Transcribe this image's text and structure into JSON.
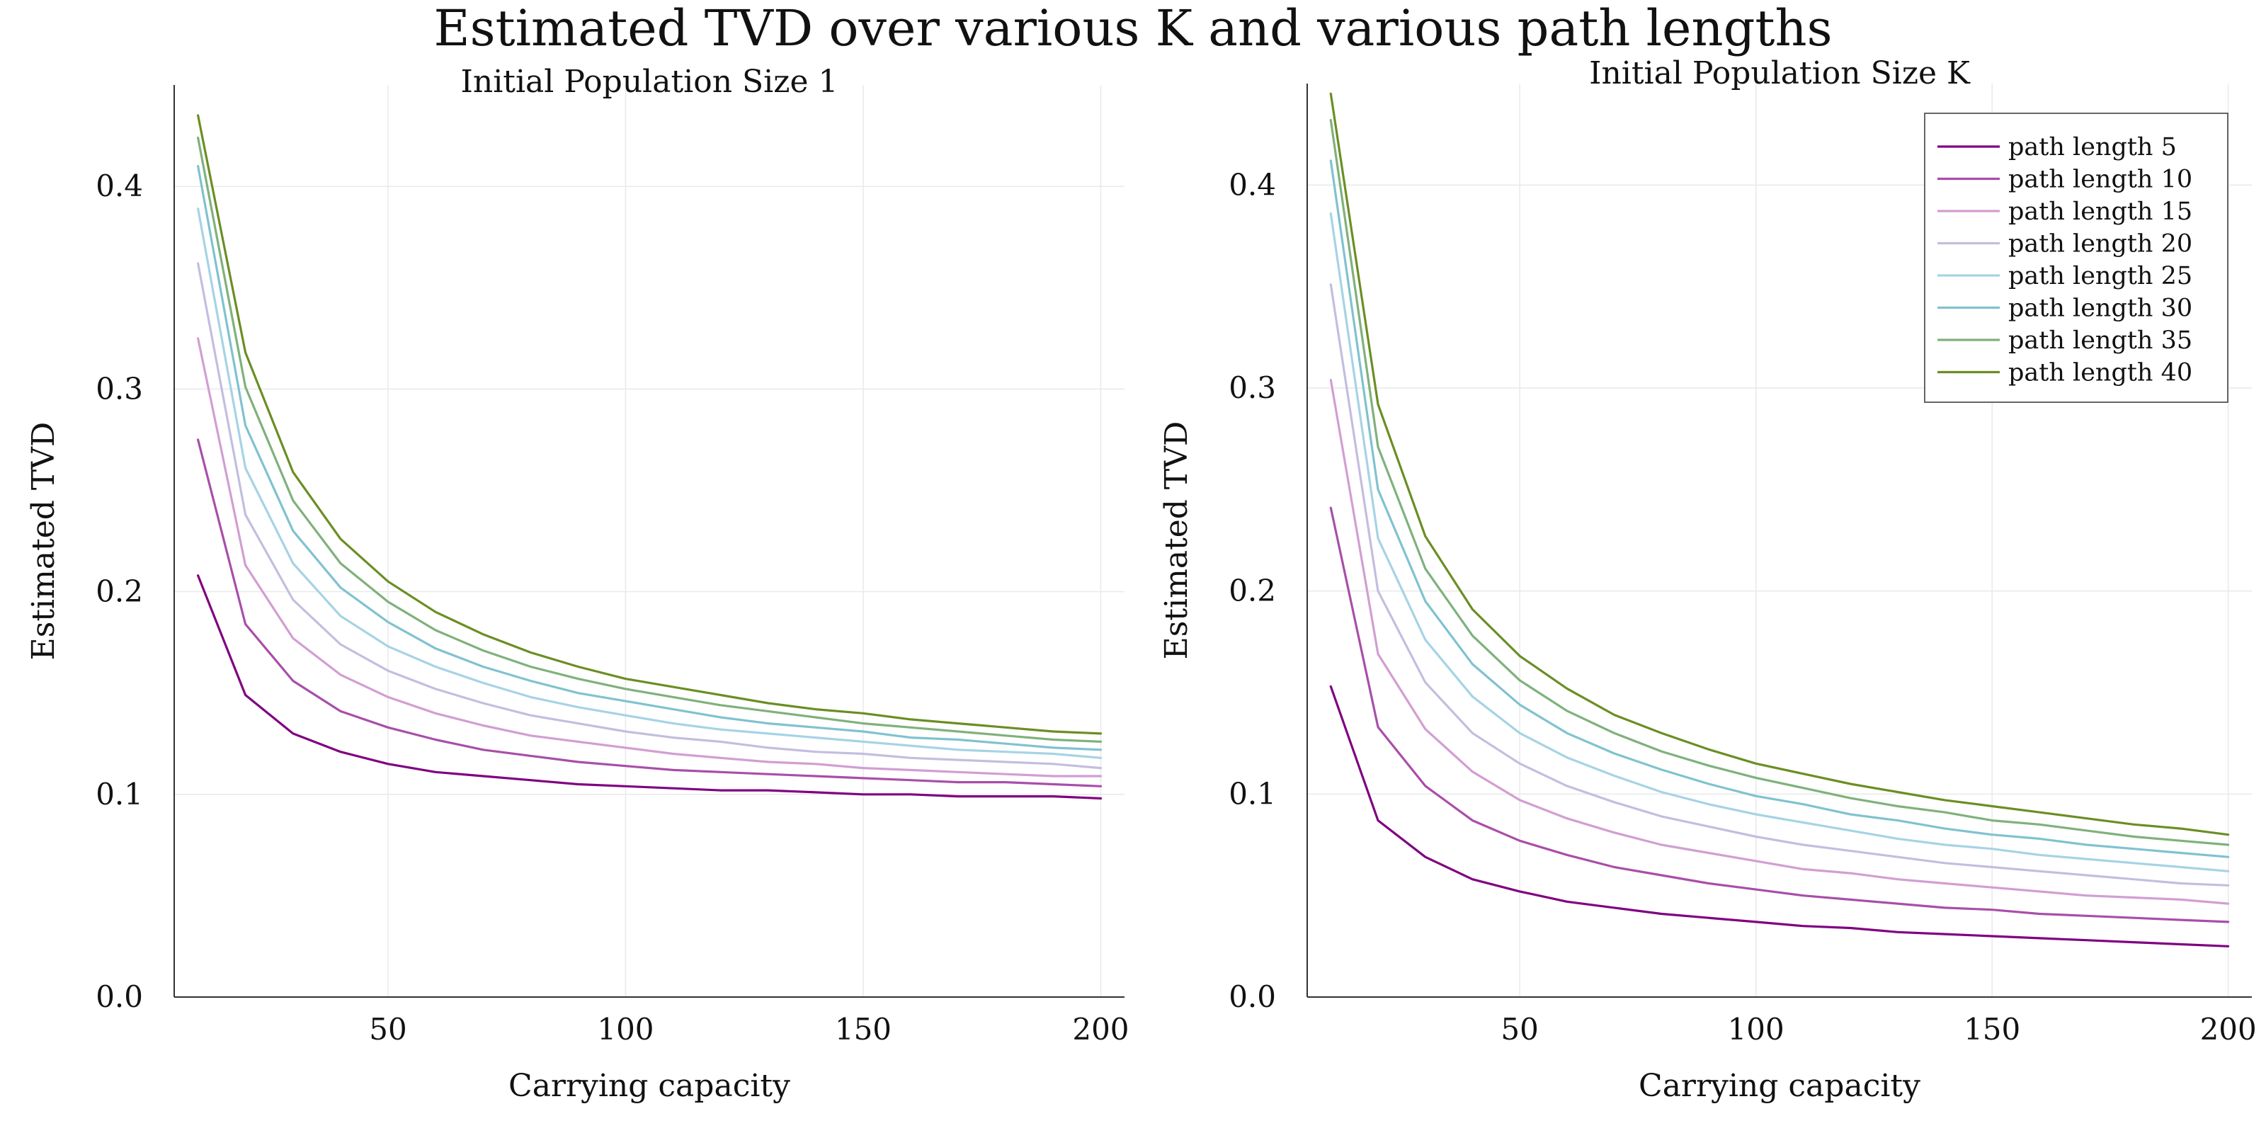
{
  "title": "Estimated TVD over various K and various path lengths",
  "chart_data": [
    {
      "type": "line",
      "title": "Initial Population Size 1",
      "xlabel": "Carrying capacity",
      "ylabel": "Estimated TVD",
      "x": [
        10,
        20,
        30,
        40,
        50,
        60,
        70,
        80,
        90,
        100,
        110,
        120,
        130,
        140,
        150,
        160,
        170,
        180,
        190,
        200
      ],
      "xlim": [
        5,
        205
      ],
      "ylim": [
        0.0,
        0.45
      ],
      "xticks": [
        "50",
        "100",
        "150",
        "200"
      ],
      "yticks": [
        "0.0",
        "0.1",
        "0.2",
        "0.3",
        "0.4"
      ],
      "grid": true,
      "series": [
        {
          "name": "path length 5",
          "color": "#800080",
          "values": [
            0.208,
            0.149,
            0.13,
            0.121,
            0.115,
            0.111,
            0.109,
            0.107,
            0.105,
            0.104,
            0.103,
            0.102,
            0.102,
            0.101,
            0.1,
            0.1,
            0.099,
            0.099,
            0.099,
            0.098
          ]
        },
        {
          "name": "path length 10",
          "color": "#a94ea9",
          "values": [
            0.275,
            0.184,
            0.156,
            0.141,
            0.133,
            0.127,
            0.122,
            0.119,
            0.116,
            0.114,
            0.112,
            0.111,
            0.11,
            0.109,
            0.108,
            0.107,
            0.106,
            0.106,
            0.105,
            0.104
          ]
        },
        {
          "name": "path length 15",
          "color": "#d29ed2",
          "values": [
            0.325,
            0.213,
            0.177,
            0.159,
            0.148,
            0.14,
            0.134,
            0.129,
            0.126,
            0.123,
            0.12,
            0.118,
            0.116,
            0.115,
            0.113,
            0.112,
            0.111,
            0.11,
            0.109,
            0.109
          ]
        },
        {
          "name": "path length 20",
          "color": "#c3bedf",
          "values": [
            0.362,
            0.238,
            0.196,
            0.174,
            0.161,
            0.152,
            0.145,
            0.139,
            0.135,
            0.131,
            0.128,
            0.126,
            0.123,
            0.121,
            0.12,
            0.118,
            0.117,
            0.116,
            0.115,
            0.113
          ]
        },
        {
          "name": "path length 25",
          "color": "#a6d3e5",
          "values": [
            0.389,
            0.261,
            0.214,
            0.188,
            0.173,
            0.163,
            0.155,
            0.148,
            0.143,
            0.139,
            0.135,
            0.132,
            0.13,
            0.128,
            0.126,
            0.124,
            0.122,
            0.121,
            0.12,
            0.118
          ]
        },
        {
          "name": "path length 30",
          "color": "#80c2cf",
          "values": [
            0.41,
            0.282,
            0.23,
            0.202,
            0.185,
            0.172,
            0.163,
            0.156,
            0.15,
            0.146,
            0.142,
            0.138,
            0.135,
            0.133,
            0.131,
            0.128,
            0.127,
            0.125,
            0.123,
            0.122
          ]
        },
        {
          "name": "path length 35",
          "color": "#7fb17c",
          "values": [
            0.424,
            0.301,
            0.245,
            0.214,
            0.195,
            0.181,
            0.171,
            0.163,
            0.157,
            0.152,
            0.148,
            0.144,
            0.141,
            0.138,
            0.135,
            0.133,
            0.131,
            0.129,
            0.127,
            0.126
          ]
        },
        {
          "name": "path length 40",
          "color": "#6b8e23",
          "values": [
            0.435,
            0.318,
            0.259,
            0.226,
            0.205,
            0.19,
            0.179,
            0.17,
            0.163,
            0.157,
            0.153,
            0.149,
            0.145,
            0.142,
            0.14,
            0.137,
            0.135,
            0.133,
            0.131,
            0.13
          ]
        }
      ]
    },
    {
      "type": "line",
      "title": "Initial Population Size K",
      "xlabel": "Carrying capacity",
      "ylabel": "Estimated TVD",
      "x": [
        10,
        20,
        30,
        40,
        50,
        60,
        70,
        80,
        90,
        100,
        110,
        120,
        130,
        140,
        150,
        160,
        170,
        180,
        190,
        200
      ],
      "xlim": [
        5,
        205
      ],
      "ylim": [
        0.0,
        0.45
      ],
      "xticks": [
        "50",
        "100",
        "150",
        "200"
      ],
      "yticks": [
        "0.0",
        "0.1",
        "0.2",
        "0.3",
        "0.4"
      ],
      "grid": true,
      "legend": "top-right",
      "series": [
        {
          "name": "path length 5",
          "color": "#800080",
          "values": [
            0.153,
            0.087,
            0.069,
            0.058,
            0.052,
            0.047,
            0.044,
            0.041,
            0.039,
            0.037,
            0.035,
            0.034,
            0.032,
            0.031,
            0.03,
            0.029,
            0.028,
            0.027,
            0.026,
            0.025
          ]
        },
        {
          "name": "path length 10",
          "color": "#a94ea9",
          "values": [
            0.241,
            0.133,
            0.104,
            0.087,
            0.077,
            0.07,
            0.064,
            0.06,
            0.056,
            0.053,
            0.05,
            0.048,
            0.046,
            0.044,
            0.043,
            0.041,
            0.04,
            0.039,
            0.038,
            0.037
          ]
        },
        {
          "name": "path length 15",
          "color": "#d29ed2",
          "values": [
            0.304,
            0.169,
            0.132,
            0.111,
            0.097,
            0.088,
            0.081,
            0.075,
            0.071,
            0.067,
            0.063,
            0.061,
            0.058,
            0.056,
            0.054,
            0.052,
            0.05,
            0.049,
            0.048,
            0.046
          ]
        },
        {
          "name": "path length 20",
          "color": "#c3bedf",
          "values": [
            0.351,
            0.2,
            0.155,
            0.13,
            0.115,
            0.104,
            0.096,
            0.089,
            0.084,
            0.079,
            0.075,
            0.072,
            0.069,
            0.066,
            0.064,
            0.062,
            0.06,
            0.058,
            0.056,
            0.055
          ]
        },
        {
          "name": "path length 25",
          "color": "#a6d3e5",
          "values": [
            0.386,
            0.226,
            0.176,
            0.148,
            0.13,
            0.118,
            0.109,
            0.101,
            0.095,
            0.09,
            0.086,
            0.082,
            0.078,
            0.075,
            0.073,
            0.07,
            0.068,
            0.066,
            0.064,
            0.062
          ]
        },
        {
          "name": "path length 30",
          "color": "#80c2cf",
          "values": [
            0.412,
            0.25,
            0.195,
            0.164,
            0.144,
            0.13,
            0.12,
            0.112,
            0.105,
            0.099,
            0.095,
            0.09,
            0.087,
            0.083,
            0.08,
            0.078,
            0.075,
            0.073,
            0.071,
            0.069
          ]
        },
        {
          "name": "path length 35",
          "color": "#7fb17c",
          "values": [
            0.432,
            0.271,
            0.211,
            0.178,
            0.156,
            0.141,
            0.13,
            0.121,
            0.114,
            0.108,
            0.103,
            0.098,
            0.094,
            0.091,
            0.087,
            0.085,
            0.082,
            0.079,
            0.077,
            0.075
          ]
        },
        {
          "name": "path length 40",
          "color": "#6b8e23",
          "values": [
            0.445,
            0.292,
            0.227,
            0.191,
            0.168,
            0.152,
            0.139,
            0.13,
            0.122,
            0.115,
            0.11,
            0.105,
            0.101,
            0.097,
            0.094,
            0.091,
            0.088,
            0.085,
            0.083,
            0.08
          ]
        }
      ]
    }
  ]
}
